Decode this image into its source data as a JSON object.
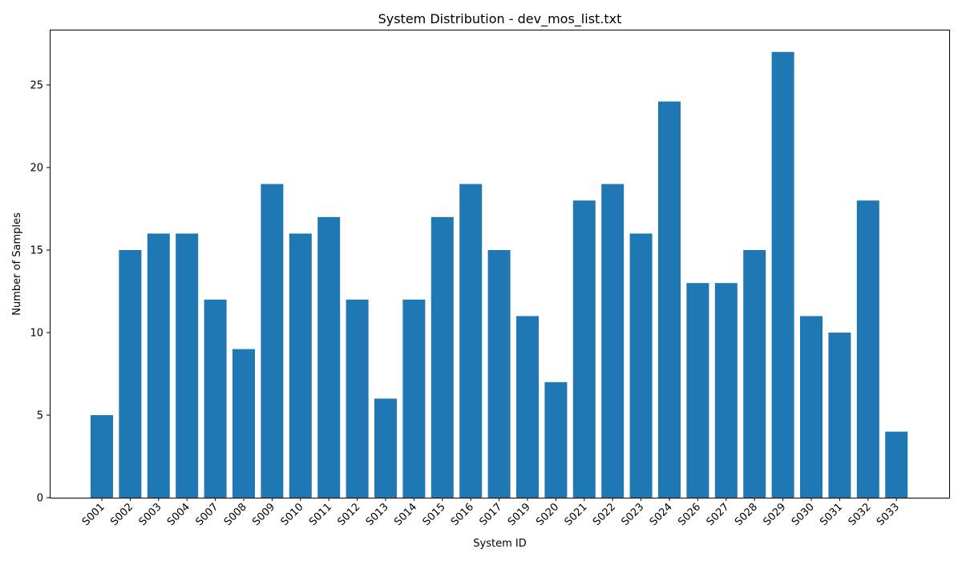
{
  "chart_data": {
    "type": "bar",
    "title": "System Distribution - dev_mos_list.txt",
    "xlabel": "System ID",
    "ylabel": "Number of Samples",
    "categories": [
      "S001",
      "S002",
      "S003",
      "S004",
      "S007",
      "S008",
      "S009",
      "S010",
      "S011",
      "S012",
      "S013",
      "S014",
      "S015",
      "S016",
      "S017",
      "S019",
      "S020",
      "S021",
      "S022",
      "S023",
      "S024",
      "S026",
      "S027",
      "S028",
      "S029",
      "S030",
      "S031",
      "S032",
      "S033"
    ],
    "values": [
      5,
      15,
      16,
      16,
      12,
      9,
      19,
      16,
      17,
      12,
      6,
      12,
      17,
      19,
      15,
      11,
      7,
      18,
      19,
      16,
      24,
      13,
      13,
      15,
      27,
      11,
      10,
      18,
      4
    ],
    "ylim": [
      0,
      28.35
    ],
    "yticks": [
      0,
      5,
      10,
      15,
      20,
      25
    ],
    "grid": false,
    "legend": "none",
    "bar_color": "#1f77b4"
  }
}
